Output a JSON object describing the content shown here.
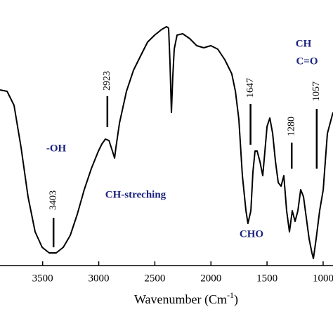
{
  "chart_data": {
    "type": "line",
    "xlabel": "Wavenumber (Cm",
    "xlabel_sup": "-1",
    "xlabel_end": ")",
    "xlim": [
      3880,
      912
    ],
    "ylim": [
      0,
      378
    ],
    "xticks": [
      3500,
      3000,
      2500,
      2000,
      1500,
      1000
    ],
    "x": [
      3880,
      3817,
      3755,
      3692,
      3630,
      3567,
      3504,
      3442,
      3379,
      3316,
      3254,
      3191,
      3129,
      3066,
      3003,
      2972,
      2941,
      2909,
      2878,
      2859,
      2847,
      2815,
      2753,
      2690,
      2628,
      2565,
      2502,
      2440,
      2396,
      2377,
      2365,
      2352,
      2340,
      2327,
      2302,
      2252,
      2189,
      2127,
      2064,
      2001,
      1939,
      1876,
      1814,
      1782,
      1751,
      1720,
      1688,
      1670,
      1644,
      1626,
      1607,
      1588,
      1563,
      1538,
      1519,
      1500,
      1475,
      1450,
      1425,
      1400,
      1375,
      1350,
      1325,
      1300,
      1275,
      1250,
      1225,
      1200,
      1175,
      1150,
      1125,
      1100,
      1087,
      1062,
      1031,
      999,
      981,
      962,
      937,
      912
    ],
    "series": [
      {
        "color": "#000000",
        "values": [
          250,
          248,
          228,
          168,
          98,
          48,
          26,
          18,
          18,
          26,
          43,
          73,
          108,
          138,
          163,
          173,
          180,
          178,
          163,
          153,
          168,
          203,
          248,
          278,
          298,
          318,
          328,
          336,
          340,
          338,
          288,
          218,
          268,
          308,
          328,
          330,
          323,
          313,
          310,
          313,
          308,
          293,
          273,
          248,
          208,
          128,
          78,
          60,
          78,
          133,
          163,
          163,
          148,
          128,
          163,
          198,
          210,
          188,
          148,
          118,
          113,
          128,
          78,
          48,
          78,
          63,
          78,
          108,
          98,
          68,
          38,
          18,
          10,
          38,
          78,
          108,
          148,
          188,
          203,
          218
        ]
      }
    ],
    "peaks": [
      3403,
      2923,
      1647,
      1280,
      1057
    ],
    "annotations": [
      "-OH",
      "CH-streching",
      "CHO",
      "CH",
      "C=O"
    ]
  }
}
